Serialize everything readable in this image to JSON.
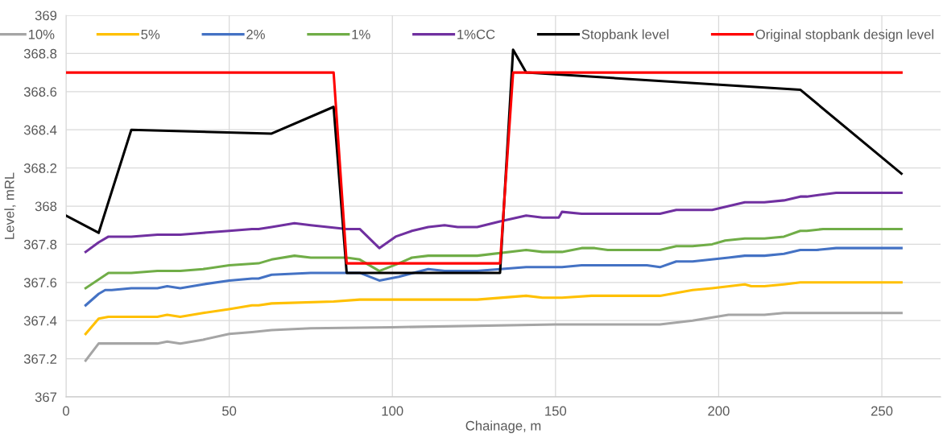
{
  "chart_data": {
    "type": "line",
    "xlabel": "Chainage, m",
    "ylabel": "Level, mRL",
    "xlim": [
      0,
      268
    ],
    "xticks": [
      0,
      50,
      100,
      150,
      200,
      250
    ],
    "ylim": [
      367,
      369
    ],
    "yticks": [
      367,
      367.2,
      367.4,
      367.6,
      367.8,
      368,
      368.2,
      368.4,
      368.6,
      368.8,
      369
    ],
    "grid": true,
    "legend": "top",
    "marker": "none",
    "line_style": "solid",
    "series": [
      {
        "name": "10%",
        "color": "#a5a5a5",
        "x": [
          6,
          10,
          13,
          28,
          31,
          35,
          42,
          50,
          57,
          63,
          75,
          100,
          150,
          182,
          192,
          203,
          214,
          220,
          256
        ],
        "values": [
          367.19,
          367.28,
          367.28,
          367.28,
          367.29,
          367.28,
          367.3,
          367.33,
          367.34,
          367.35,
          367.36,
          367.365,
          367.38,
          367.38,
          367.4,
          367.43,
          367.43,
          367.44,
          367.44
        ]
      },
      {
        "name": "5%",
        "color": "#ffc000",
        "x": [
          6,
          10,
          13,
          28,
          31,
          35,
          42,
          50,
          57,
          59,
          63,
          82,
          90,
          126,
          141,
          146,
          152,
          161,
          182,
          192,
          198,
          208,
          210,
          214,
          220,
          225,
          256
        ],
        "values": [
          367.33,
          367.41,
          367.42,
          367.42,
          367.43,
          367.42,
          367.44,
          367.46,
          367.48,
          367.48,
          367.49,
          367.5,
          367.51,
          367.51,
          367.53,
          367.52,
          367.52,
          367.53,
          367.53,
          367.56,
          367.57,
          367.59,
          367.58,
          367.58,
          367.59,
          367.6,
          367.6
        ]
      },
      {
        "name": "2%",
        "color": "#4472c4",
        "x": [
          6,
          10,
          12,
          14,
          20,
          28,
          31,
          35,
          42,
          50,
          57,
          59,
          63,
          75,
          86,
          90,
          96,
          102,
          111,
          116,
          126,
          133,
          141,
          152,
          158,
          178,
          182,
          187,
          192,
          203,
          208,
          214,
          220,
          225,
          230,
          236,
          256
        ],
        "values": [
          367.48,
          367.54,
          367.56,
          367.56,
          367.57,
          367.57,
          367.58,
          367.57,
          367.59,
          367.61,
          367.62,
          367.62,
          367.64,
          367.65,
          367.65,
          367.65,
          367.61,
          367.63,
          367.67,
          367.66,
          367.66,
          367.67,
          367.68,
          367.68,
          367.69,
          367.69,
          367.68,
          367.71,
          367.71,
          367.73,
          367.74,
          367.74,
          367.75,
          367.77,
          367.77,
          367.78,
          367.78
        ]
      },
      {
        "name": "1%",
        "color": "#70ad47",
        "x": [
          6,
          13,
          20,
          28,
          35,
          42,
          50,
          59,
          63,
          70,
          75,
          86,
          90,
          96,
          102,
          106,
          111,
          126,
          141,
          146,
          152,
          158,
          162,
          166,
          182,
          187,
          192,
          198,
          202,
          208,
          214,
          220,
          225,
          227,
          232,
          256
        ],
        "values": [
          367.57,
          367.65,
          367.65,
          367.66,
          367.66,
          367.67,
          367.69,
          367.7,
          367.72,
          367.74,
          367.73,
          367.73,
          367.72,
          367.66,
          367.7,
          367.73,
          367.74,
          367.74,
          367.77,
          367.76,
          367.76,
          367.78,
          367.78,
          367.77,
          367.77,
          367.79,
          367.79,
          367.8,
          367.82,
          367.83,
          367.83,
          367.84,
          367.87,
          367.87,
          367.88,
          367.88
        ]
      },
      {
        "name": "1%CC",
        "color": "#7030a0",
        "x": [
          6,
          10,
          13,
          20,
          28,
          35,
          42,
          50,
          57,
          59,
          63,
          70,
          75,
          86,
          90,
          96,
          101,
          106,
          111,
          116,
          120,
          126,
          133,
          141,
          146,
          151,
          152,
          158,
          182,
          187,
          198,
          208,
          214,
          220,
          225,
          227,
          236,
          256
        ],
        "values": [
          367.76,
          367.81,
          367.84,
          367.84,
          367.85,
          367.85,
          367.86,
          367.87,
          367.88,
          367.88,
          367.89,
          367.91,
          367.9,
          367.88,
          367.88,
          367.78,
          367.84,
          367.87,
          367.89,
          367.9,
          367.89,
          367.89,
          367.92,
          367.95,
          367.94,
          367.94,
          367.97,
          367.96,
          367.96,
          367.98,
          367.98,
          368.02,
          368.02,
          368.03,
          368.05,
          368.05,
          368.07,
          368.07
        ]
      },
      {
        "name": "Stopbank level",
        "color": "#000000",
        "x": [
          0,
          10,
          20,
          63,
          82,
          86,
          133,
          137,
          141,
          225,
          256
        ],
        "values": [
          367.95,
          367.86,
          368.4,
          368.38,
          368.52,
          367.65,
          367.65,
          368.82,
          368.7,
          368.61,
          368.17
        ]
      },
      {
        "name": "Original stopbank design level",
        "color": "#ff0000",
        "x": [
          0,
          82,
          86,
          133,
          137,
          256
        ],
        "values": [
          368.7,
          368.7,
          367.7,
          367.7,
          368.7,
          368.7
        ]
      }
    ]
  }
}
